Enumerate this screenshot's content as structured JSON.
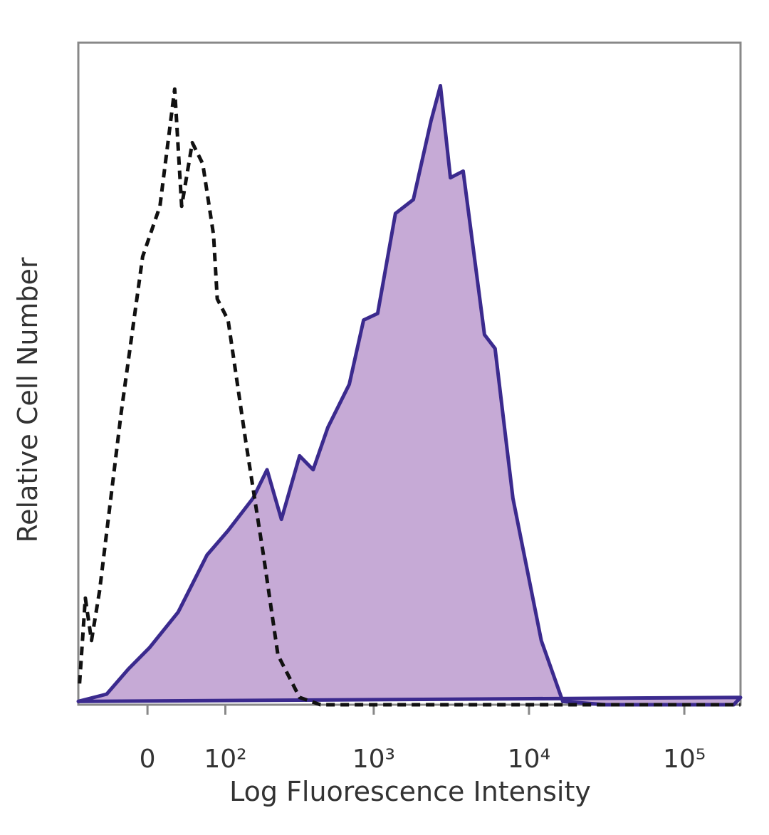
{
  "chart_data": {
    "type": "histogram-overlay",
    "x_label": "Log Fluorescence Intensity",
    "y_label": "Relative Cell Number",
    "xscale": "biexponential",
    "xlim": [
      -85,
      230000
    ],
    "ylim": [
      0,
      100
    ],
    "xticks": [
      {
        "value": 0,
        "label": "0"
      },
      {
        "value": 100,
        "label": "10²"
      },
      {
        "value": 1000,
        "label": "10³"
      },
      {
        "value": 10000,
        "label": "10⁴"
      },
      {
        "value": 100000,
        "label": "10⁵"
      }
    ],
    "series": [
      {
        "color": "#3b2a8e",
        "fill": "#c6aad6",
        "dashed": false,
        "x": [
          -85,
          -45,
          -20,
          2,
          33,
          70,
          105,
          160,
          200,
          250,
          330,
          405,
          505,
          695,
          860,
          1060,
          1380,
          1800,
          2340,
          2690,
          3120,
          3770,
          5170,
          6050,
          7880,
          12000,
          16500,
          31100,
          208000,
          230000
        ],
        "values": [
          0.5,
          1.6,
          5.4,
          8.6,
          14,
          22.6,
          26.3,
          31.2,
          35.5,
          28,
          37.6,
          35.5,
          41.9,
          48.4,
          58.1,
          59.1,
          74.2,
          76.3,
          88.2,
          93.5,
          79.6,
          80.6,
          55.9,
          53.8,
          31.2,
          9.7,
          0.5,
          0,
          0,
          1.1
        ]
      },
      {
        "color": "#111111",
        "fill": "none",
        "dashed": true,
        "x": [
          -83,
          -74,
          -65,
          -54,
          -28,
          -5,
          13,
          29,
          37,
          50,
          64,
          80,
          86,
          105,
          142,
          189,
          237,
          330,
          452,
          230000
        ],
        "values": [
          3.2,
          16.1,
          9.7,
          17.2,
          44.1,
          67.7,
          75.3,
          93,
          75.3,
          84.9,
          81.7,
          71,
          61.3,
          58.1,
          39.8,
          22.6,
          7.5,
          1.1,
          0,
          0
        ]
      }
    ]
  }
}
